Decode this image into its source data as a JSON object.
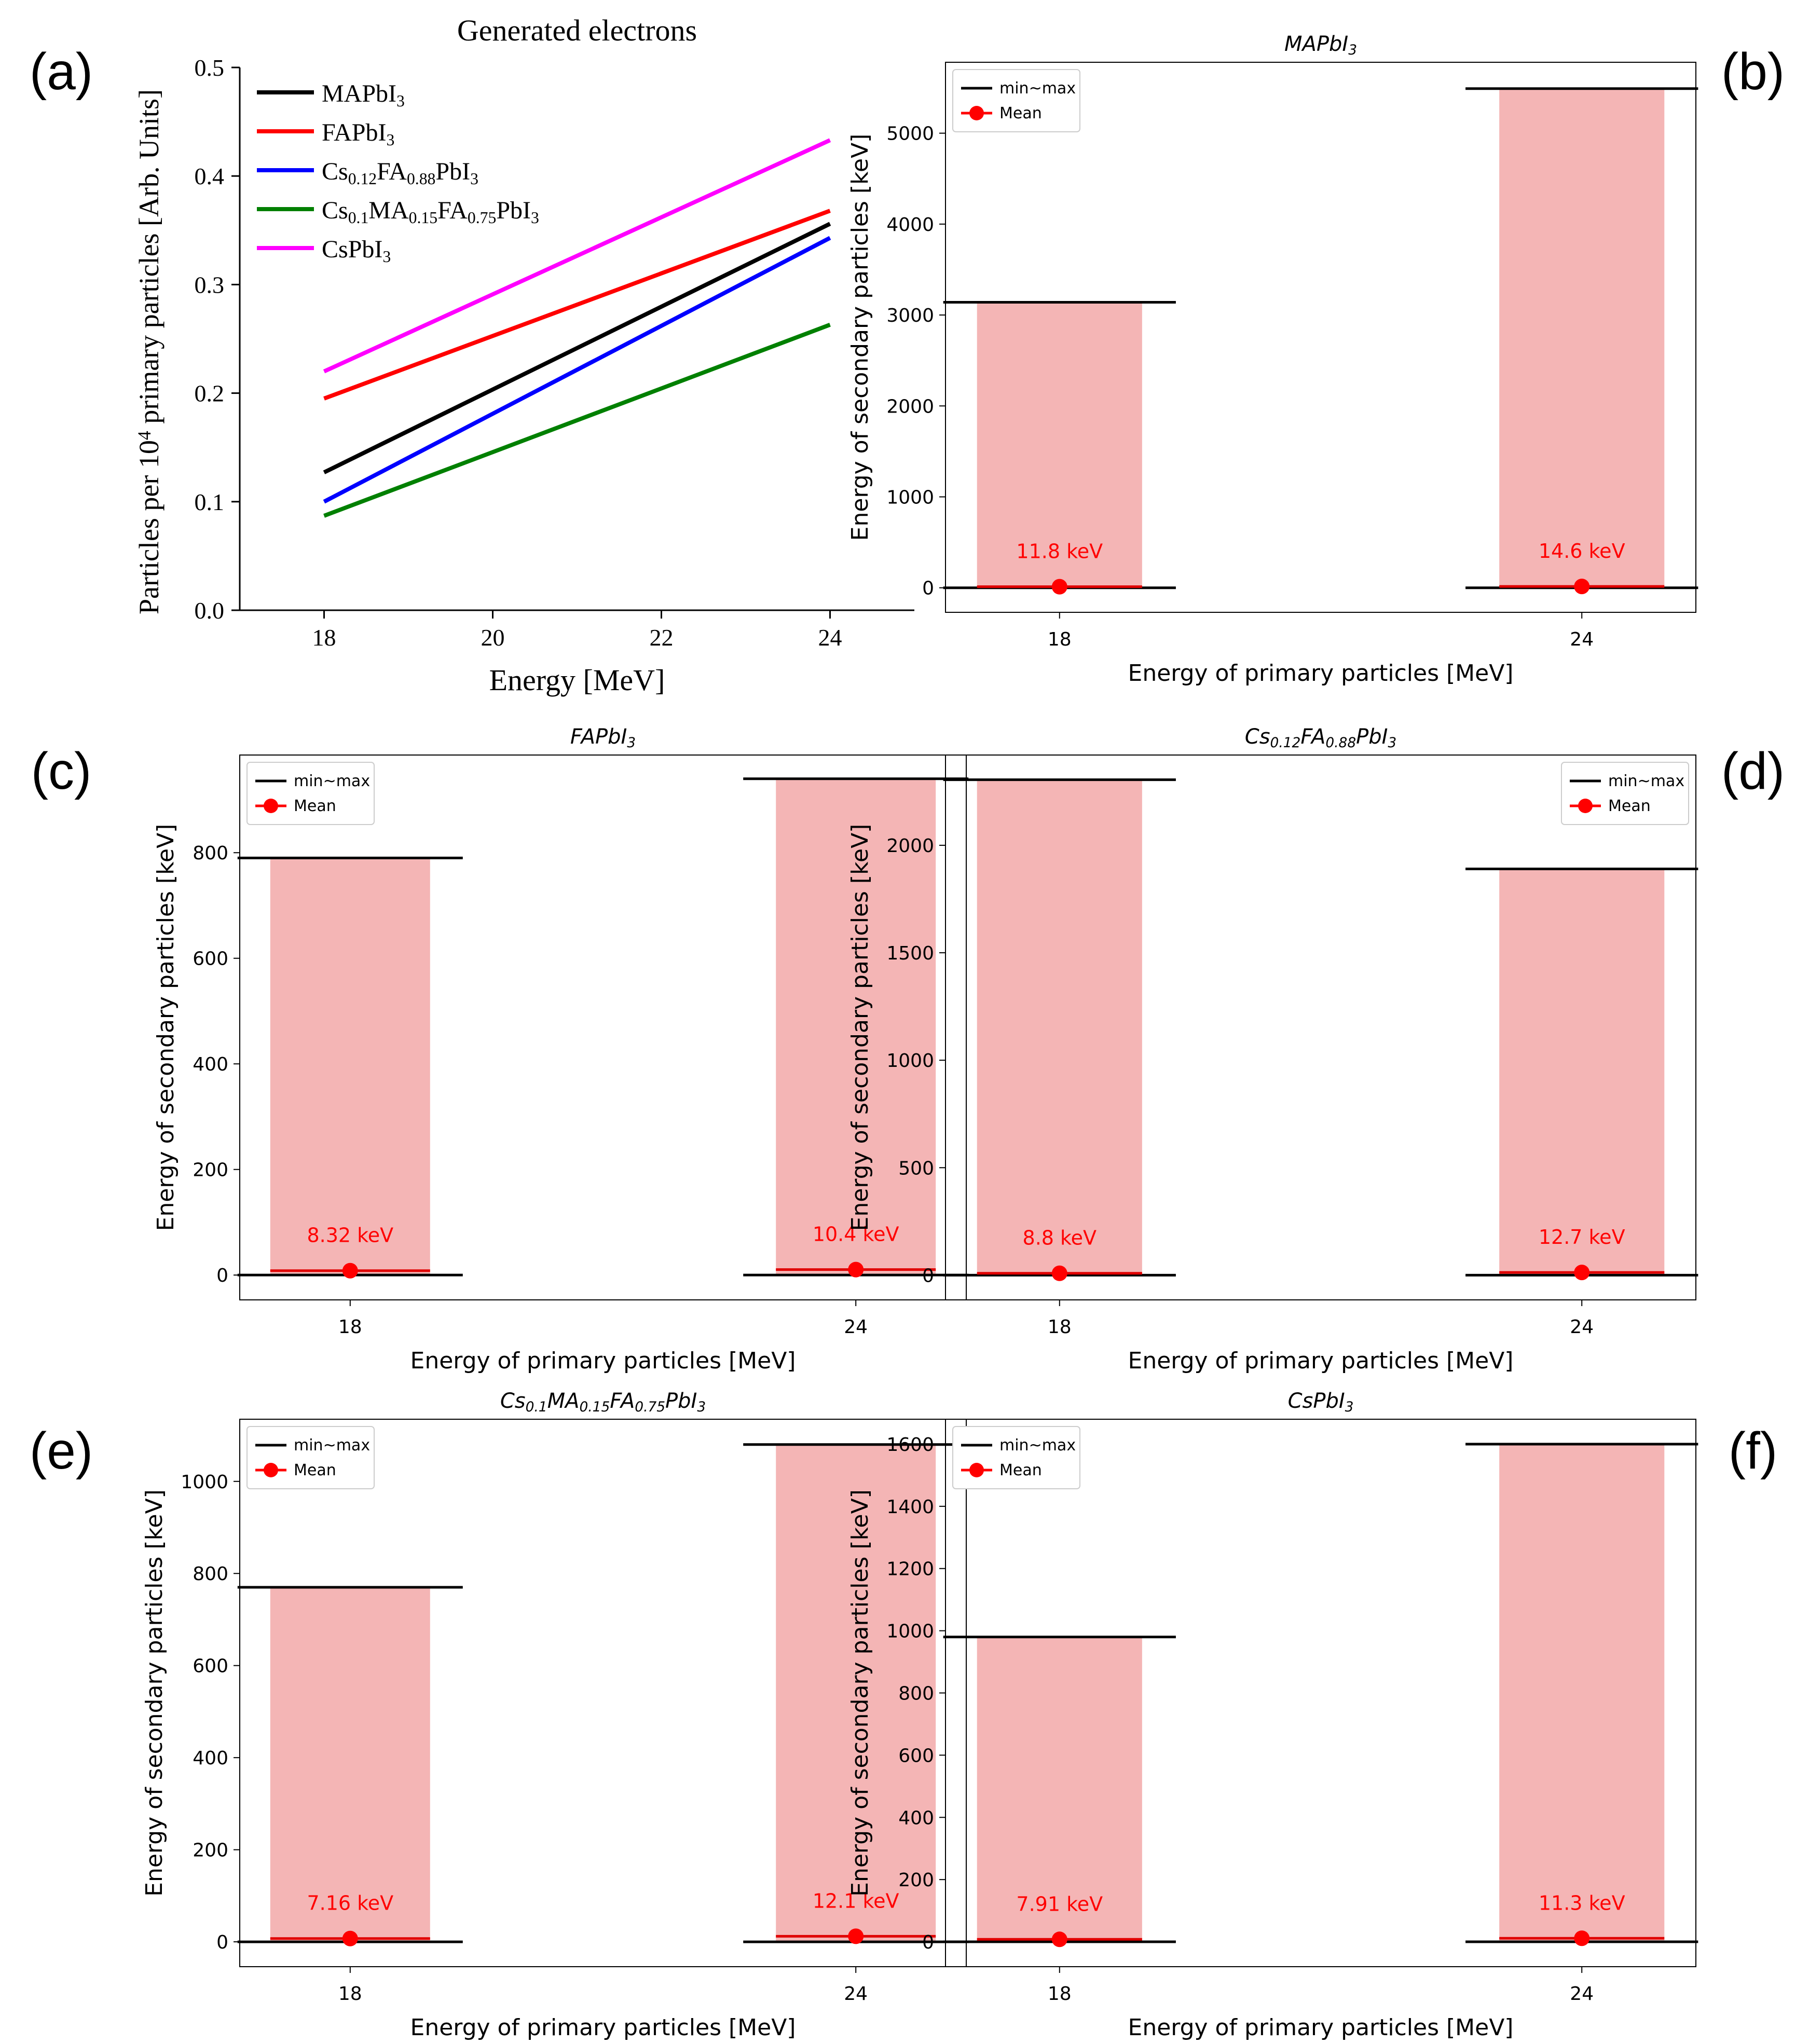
{
  "panel_labels": [
    "(a)",
    "(b)",
    "(c)",
    "(d)",
    "(e)",
    "(f)"
  ],
  "chart_data": [
    {
      "type": "line",
      "title": "Generated electrons",
      "xlabel": "Energy [MeV]",
      "ylabel_parts": [
        {
          "t": "Particles per 10"
        },
        {
          "t": "4",
          "sup": true
        },
        {
          "t": " primary particles [Arb. Units]"
        }
      ],
      "xlim": [
        17,
        25
      ],
      "ylim": [
        0,
        0.5
      ],
      "xticks": [
        18,
        20,
        22,
        24
      ],
      "xtick_labels": [
        "18",
        "20",
        "22",
        "24"
      ],
      "yticks": [
        0,
        0.1,
        0.2,
        0.3,
        0.4,
        0.5
      ],
      "ytick_labels": [
        "0.0",
        "0.1",
        "0.2",
        "0.3",
        "0.4",
        "0.5"
      ],
      "legend_position": "top-left",
      "series": [
        {
          "name": "MAPbI3",
          "label_parts": [
            {
              "t": "MAPbI"
            },
            {
              "t": "3",
              "sub": true
            }
          ],
          "color": "#000000",
          "x": [
            18,
            24
          ],
          "values": [
            0.127,
            0.356
          ]
        },
        {
          "name": "FAPbI3",
          "label_parts": [
            {
              "t": "FAPbI"
            },
            {
              "t": "3",
              "sub": true
            }
          ],
          "color": "#ff0000",
          "x": [
            18,
            24
          ],
          "values": [
            0.195,
            0.368
          ]
        },
        {
          "name": "Cs0.12FA0.88PbI3",
          "label_parts": [
            {
              "t": "Cs"
            },
            {
              "t": "0.12",
              "sub": true
            },
            {
              "t": "FA"
            },
            {
              "t": "0.88",
              "sub": true
            },
            {
              "t": "PbI"
            },
            {
              "t": "3",
              "sub": true
            }
          ],
          "color": "#0000ff",
          "x": [
            18,
            24
          ],
          "values": [
            0.1,
            0.343
          ]
        },
        {
          "name": "Cs0.1MA0.15FA0.75PbI3",
          "label_parts": [
            {
              "t": "Cs"
            },
            {
              "t": "0.1",
              "sub": true
            },
            {
              "t": "MA"
            },
            {
              "t": "0.15",
              "sub": true
            },
            {
              "t": "FA"
            },
            {
              "t": "0.75",
              "sub": true
            },
            {
              "t": "PbI"
            },
            {
              "t": "3",
              "sub": true
            }
          ],
          "color": "#008000",
          "x": [
            18,
            24
          ],
          "values": [
            0.087,
            0.263
          ]
        },
        {
          "name": "CsPbI3",
          "label_parts": [
            {
              "t": "CsPbI"
            },
            {
              "t": "3",
              "sub": true
            }
          ],
          "color": "#ff00ff",
          "x": [
            18,
            24
          ],
          "values": [
            0.22,
            0.433
          ]
        }
      ]
    },
    {
      "type": "bar",
      "title_parts": [
        {
          "t": "MAPbI"
        },
        {
          "t": "3",
          "sub": true
        }
      ],
      "xlabel": "Energy of primary particles [MeV]",
      "ylabel": "Energy of secondary particles [keV]",
      "categories": [
        "18",
        "24"
      ],
      "ylim": [
        -270,
        5780
      ],
      "yticks": [
        0,
        1000,
        2000,
        3000,
        4000,
        5000
      ],
      "min": [
        0,
        0
      ],
      "max": [
        3140,
        5490
      ],
      "mean": [
        11.8,
        14.6
      ],
      "mean_labels": [
        "11.8 keV",
        "14.6 keV"
      ],
      "legend_position": "top-left",
      "legend": [
        "min~max",
        "Mean"
      ]
    },
    {
      "type": "bar",
      "title_parts": [
        {
          "t": "FAPbI"
        },
        {
          "t": "3",
          "sub": true
        }
      ],
      "xlabel": "Energy of primary particles [MeV]",
      "ylabel": "Energy of secondary particles [keV]",
      "categories": [
        "18",
        "24"
      ],
      "ylim": [
        -47,
        985
      ],
      "yticks": [
        0,
        200,
        400,
        600,
        800
      ],
      "min": [
        0,
        0
      ],
      "max": [
        790,
        940
      ],
      "mean": [
        8.32,
        10.4
      ],
      "mean_labels": [
        "8.32 keV",
        "10.4 keV"
      ],
      "legend_position": "top-left",
      "legend": [
        "min~max",
        "Mean"
      ]
    },
    {
      "type": "bar",
      "title_parts": [
        {
          "t": "Cs"
        },
        {
          "t": "0.12",
          "sub": true
        },
        {
          "t": "FA"
        },
        {
          "t": "0.88",
          "sub": true
        },
        {
          "t": "PbI"
        },
        {
          "t": "3",
          "sub": true
        }
      ],
      "xlabel": "Energy of primary particles [MeV]",
      "ylabel": "Energy of secondary particles [keV]",
      "categories": [
        "18",
        "24"
      ],
      "ylim": [
        -115,
        2420
      ],
      "yticks": [
        0,
        500,
        1000,
        1500,
        2000
      ],
      "min": [
        0,
        0
      ],
      "max": [
        2305,
        1890
      ],
      "mean": [
        8.8,
        12.7
      ],
      "mean_labels": [
        "8.8 keV",
        "12.7 keV"
      ],
      "legend_position": "top-right",
      "legend": [
        "min~max",
        "Mean"
      ]
    },
    {
      "type": "bar",
      "title_parts": [
        {
          "t": "Cs"
        },
        {
          "t": "0.1",
          "sub": true
        },
        {
          "t": "MA"
        },
        {
          "t": "0.15",
          "sub": true
        },
        {
          "t": "FA"
        },
        {
          "t": "0.75",
          "sub": true
        },
        {
          "t": "PbI"
        },
        {
          "t": "3",
          "sub": true
        }
      ],
      "xlabel": "Energy of primary particles [MeV]",
      "ylabel": "Energy of secondary particles [keV]",
      "categories": [
        "18",
        "24"
      ],
      "ylim": [
        -54,
        1135
      ],
      "yticks": [
        0,
        200,
        400,
        600,
        800,
        1000
      ],
      "min": [
        0,
        0
      ],
      "max": [
        770,
        1080
      ],
      "mean": [
        7.16,
        12.1
      ],
      "mean_labels": [
        "7.16 keV",
        "12.1 keV"
      ],
      "legend_position": "top-left",
      "legend": [
        "min~max",
        "Mean"
      ]
    },
    {
      "type": "bar",
      "title_parts": [
        {
          "t": "CsPbI"
        },
        {
          "t": "3",
          "sub": true
        }
      ],
      "xlabel": "Energy of primary particles [MeV]",
      "ylabel": "Energy of secondary particles [keV]",
      "categories": [
        "18",
        "24"
      ],
      "ylim": [
        -80,
        1680
      ],
      "yticks": [
        0,
        200,
        400,
        600,
        800,
        1000,
        1200,
        1400,
        1600
      ],
      "min": [
        0,
        0
      ],
      "max": [
        980,
        1600
      ],
      "mean": [
        7.91,
        11.3
      ],
      "mean_labels": [
        "7.91 keV",
        "11.3 keV"
      ],
      "legend_position": "top-left",
      "legend": [
        "min~max",
        "Mean"
      ]
    }
  ]
}
